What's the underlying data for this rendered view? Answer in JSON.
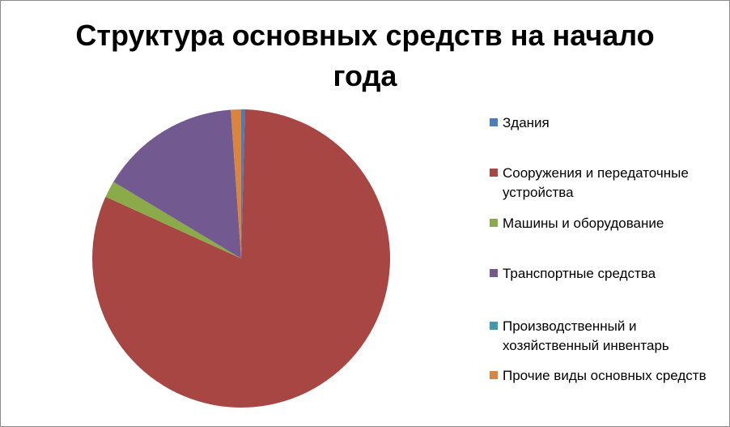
{
  "chart_data": {
    "type": "pie",
    "title": "Структура основных средств на начало года",
    "categories": [
      "Здания",
      "Сооружения и передаточные устройства",
      "Машины и оборудование",
      "Транспортные средства",
      "Производственный и хозяйственный инвентарь",
      "Прочие виды основных средств"
    ],
    "values": [
      0.4,
      81.4,
      1.8,
      15.3,
      0.01,
      1.1
    ],
    "colors": [
      "#4a7ebb",
      "#a84643",
      "#8bab4a",
      "#725a91",
      "#4198af",
      "#db843d"
    ],
    "legend_position": "right"
  }
}
